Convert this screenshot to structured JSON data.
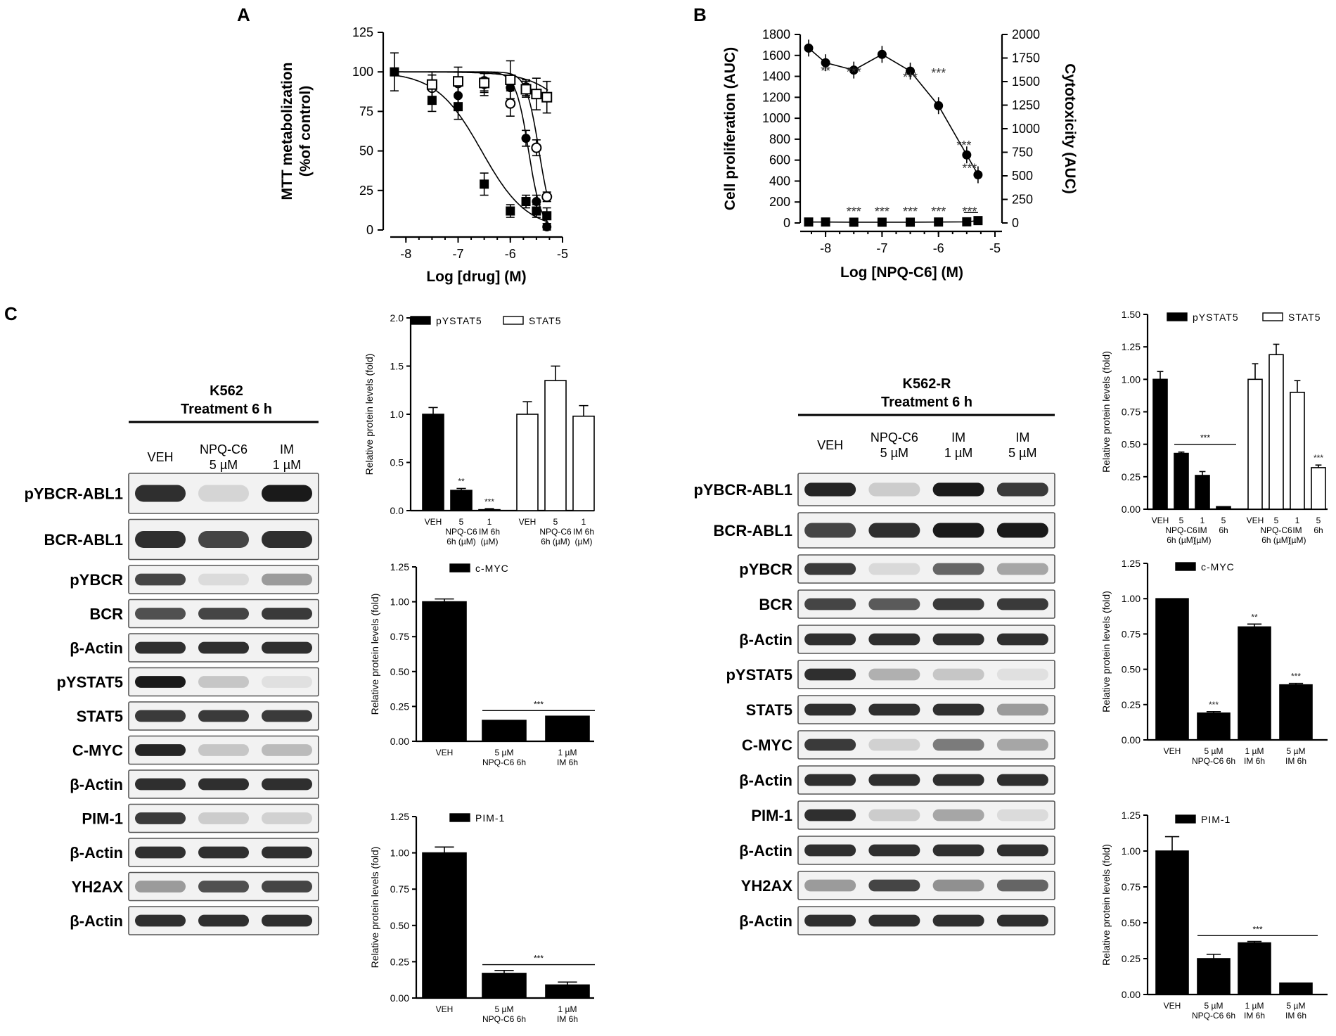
{
  "panels": {
    "A": "A",
    "B": "B",
    "C": "C"
  },
  "chart_data": [
    {
      "id": "A",
      "type": "scatter",
      "xlabel": "Log [drug] (M)",
      "ylabel": [
        "MTT metabolization",
        "(%of control)"
      ],
      "xlim": [
        -8.3,
        -5
      ],
      "ylim": [
        0,
        125
      ],
      "xticks": [
        -8,
        -7,
        -6,
        -5
      ],
      "yticks": [
        0,
        25,
        50,
        75,
        100,
        125
      ],
      "series": [
        {
          "marker": "filled-square",
          "x": [
            -8.22,
            -7.5,
            -7.0,
            -6.5,
            -6.0,
            -5.7,
            -5.5,
            -5.3
          ],
          "y": [
            100,
            82,
            78,
            29,
            12,
            18,
            12,
            9
          ],
          "err": [
            12,
            7,
            8,
            7,
            4,
            4,
            4,
            5
          ]
        },
        {
          "marker": "filled-circle",
          "x": [
            -7.5,
            -7.0,
            -6.5,
            -6.0,
            -5.7,
            -5.5,
            -5.3
          ],
          "y": [
            90,
            85,
            92,
            90,
            58,
            18,
            2
          ],
          "err": [
            8,
            7,
            7,
            7,
            5,
            4,
            2
          ]
        },
        {
          "marker": "open-circle",
          "x": [
            -7.5,
            -7.0,
            -6.5,
            -6.0,
            -5.7,
            -5.5,
            -5.3
          ],
          "y": [
            90,
            93,
            94,
            80,
            90,
            52,
            21
          ],
          "err": [
            8,
            7,
            6,
            8,
            5,
            5,
            3
          ]
        },
        {
          "marker": "open-square",
          "x": [
            -7.5,
            -7.0,
            -6.5,
            -6.0,
            -5.7,
            -5.5,
            -5.3
          ],
          "y": [
            92,
            94,
            93,
            95,
            89,
            86,
            84
          ],
          "err": [
            8,
            9,
            6,
            12,
            5,
            10,
            10
          ]
        }
      ]
    },
    {
      "id": "B",
      "type": "line",
      "xlabel": "Log [NPQ-C6] (M)",
      "ylabel_left": "Cell proliferation (AUC)",
      "ylabel_right": "Cytotoxicity (AUC)",
      "xlim": [
        -8.3,
        -5
      ],
      "ylim_left": [
        0,
        1800
      ],
      "ylim_right": [
        0,
        2000
      ],
      "xticks": [
        -8,
        -7,
        -6,
        -5
      ],
      "yticks_left": [
        0,
        200,
        400,
        600,
        800,
        1000,
        1200,
        1400,
        1600,
        1800
      ],
      "yticks_right": [
        0,
        250,
        500,
        750,
        1000,
        1250,
        1500,
        1750,
        2000
      ],
      "series": [
        {
          "marker": "filled-circle",
          "axis": "left",
          "x": [
            -8.3,
            -8.0,
            -7.5,
            -7.0,
            -6.5,
            -6.0,
            -5.5,
            -5.3
          ],
          "y": [
            1670,
            1530,
            1460,
            1610,
            1450,
            1120,
            650,
            460
          ]
        },
        {
          "marker": "filled-square",
          "axis": "right",
          "x": [
            -8.3,
            -8.0,
            -7.5,
            -7.0,
            -6.5,
            -6.0,
            -5.5,
            -5.3
          ],
          "y": [
            10,
            10,
            8,
            8,
            8,
            10,
            12,
            25
          ]
        }
      ],
      "annotations_top": [
        {
          "x": -8.0,
          "text": "**"
        },
        {
          "x": -7.5,
          "text": "***"
        },
        {
          "x": -6.5,
          "text": "***"
        },
        {
          "x": -6.0,
          "text": "***"
        },
        {
          "x": -5.55,
          "text": "***"
        },
        {
          "x": -5.45,
          "text": "***"
        }
      ],
      "annotations_bottom": [
        {
          "x": -7.5,
          "text": "***"
        },
        {
          "x": -7.0,
          "text": "***"
        },
        {
          "x": -6.5,
          "text": "***"
        },
        {
          "x": -6.0,
          "text": "***"
        },
        {
          "x": -5.45,
          "text": "***"
        }
      ]
    },
    {
      "id": "C-K562-STAT5",
      "type": "bar",
      "ylabel": "Relative protein levels (fold)",
      "ylim": [
        0,
        2.0
      ],
      "yticks": [
        "0.0",
        "0.5",
        "1.0",
        "1.5",
        "2.0"
      ],
      "legend": [
        {
          "label": "pYSTAT5",
          "fill": "#000"
        },
        {
          "label": "STAT5",
          "fill": "#fff"
        }
      ],
      "bars": [
        {
          "v": 1.0,
          "e": 0.07,
          "fill": "#000",
          "sig": ""
        },
        {
          "v": 0.21,
          "e": 0.02,
          "fill": "#000",
          "sig": "**"
        },
        {
          "v": 0.01,
          "e": 0.01,
          "fill": "#000",
          "sig": "***"
        },
        {
          "v": 1.0,
          "e": 0.13,
          "fill": "#fff",
          "sig": ""
        },
        {
          "v": 1.35,
          "e": 0.15,
          "fill": "#fff",
          "sig": ""
        },
        {
          "v": 0.98,
          "e": 0.11,
          "fill": "#fff",
          "sig": ""
        }
      ],
      "xlabels": [
        [
          "VEH"
        ],
        [
          "5",
          "NPQ-C6",
          "6h (µM)"
        ],
        [
          "1",
          "IM 6h",
          "(µM)"
        ],
        [
          "VEH"
        ],
        [
          "5",
          "NPQ-C6",
          "6h (µM)"
        ],
        [
          "1",
          "IM 6h",
          "(µM)"
        ]
      ]
    },
    {
      "id": "C-K562-CMYC",
      "type": "bar",
      "ylabel": "Relative protein levels (fold)",
      "ylim": [
        0,
        1.25
      ],
      "yticks": [
        "0.00",
        "0.25",
        "0.50",
        "0.75",
        "1.00",
        "1.25"
      ],
      "legend": [
        {
          "label": "c-MYC",
          "fill": "#000"
        }
      ],
      "bars": [
        {
          "v": 1.0,
          "e": 0.02,
          "fill": "#000",
          "sig": ""
        },
        {
          "v": 0.15,
          "e": 0.0,
          "fill": "#000",
          "sig": ""
        },
        {
          "v": 0.18,
          "e": 0.0,
          "fill": "#000",
          "sig": ""
        }
      ],
      "bracket": {
        "from": 1,
        "to": 2,
        "y": 0.22,
        "text": "***"
      },
      "xlabels": [
        [
          "VEH"
        ],
        [
          "5 µM",
          "NPQ-C6 6h"
        ],
        [
          "1 µM",
          "IM 6h"
        ]
      ]
    },
    {
      "id": "C-K562-PIM1",
      "type": "bar",
      "ylabel": "Relative protein levels (fold)",
      "ylim": [
        0,
        1.25
      ],
      "yticks": [
        "0.00",
        "0.25",
        "0.50",
        "0.75",
        "1.00",
        "1.25"
      ],
      "legend": [
        {
          "label": "PIM-1",
          "fill": "#000"
        }
      ],
      "bars": [
        {
          "v": 1.0,
          "e": 0.04,
          "fill": "#000",
          "sig": ""
        },
        {
          "v": 0.17,
          "e": 0.02,
          "fill": "#000",
          "sig": ""
        },
        {
          "v": 0.09,
          "e": 0.02,
          "fill": "#000",
          "sig": ""
        }
      ],
      "bracket": {
        "from": 1,
        "to": 2,
        "y": 0.23,
        "text": "***"
      },
      "xlabels": [
        [
          "VEH"
        ],
        [
          "5 µM",
          "NPQ-C6 6h"
        ],
        [
          "1 µM",
          "IM 6h"
        ]
      ]
    },
    {
      "id": "C-K562R-STAT5",
      "type": "bar",
      "ylabel": "Relative protein levels (fold)",
      "ylim": [
        0,
        1.5
      ],
      "yticks": [
        "0.00",
        "0.25",
        "0.50",
        "0.75",
        "1.00",
        "1.25",
        "1.50"
      ],
      "legend": [
        {
          "label": "pYSTAT5",
          "fill": "#000"
        },
        {
          "label": "STAT5",
          "fill": "#fff"
        }
      ],
      "bars": [
        {
          "v": 1.0,
          "e": 0.06,
          "fill": "#000",
          "sig": ""
        },
        {
          "v": 0.43,
          "e": 0.01,
          "fill": "#000",
          "sig": ""
        },
        {
          "v": 0.26,
          "e": 0.03,
          "fill": "#000",
          "sig": ""
        },
        {
          "v": 0.02,
          "e": 0.0,
          "fill": "#000",
          "sig": ""
        },
        {
          "v": 1.0,
          "e": 0.12,
          "fill": "#fff",
          "sig": ""
        },
        {
          "v": 1.19,
          "e": 0.08,
          "fill": "#fff",
          "sig": ""
        },
        {
          "v": 0.9,
          "e": 0.09,
          "fill": "#fff",
          "sig": ""
        },
        {
          "v": 0.32,
          "e": 0.02,
          "fill": "#fff",
          "sig": "***"
        }
      ],
      "bracket": {
        "from": 1,
        "to": 3,
        "y": 0.5,
        "text": "***"
      },
      "xlabels": [
        [
          "VEH"
        ],
        [
          "5",
          "NPQ-C6",
          "6h (µM)"
        ],
        [
          "1",
          "IM",
          "(µM)"
        ],
        [
          "5",
          "6h"
        ],
        [
          "VEH"
        ],
        [
          "5",
          "NPQ-C6",
          "6h (µM)"
        ],
        [
          "1",
          "IM",
          "(µM)"
        ],
        [
          "5",
          "6h"
        ]
      ]
    },
    {
      "id": "C-K562R-CMYC",
      "type": "bar",
      "ylabel": "Relative protein levels (fold)",
      "ylim": [
        0,
        1.25
      ],
      "yticks": [
        "0.00",
        "0.25",
        "0.50",
        "0.75",
        "1.00",
        "1.25"
      ],
      "legend": [
        {
          "label": "c-MYC",
          "fill": "#000"
        }
      ],
      "bars": [
        {
          "v": 1.0,
          "e": 0.0,
          "fill": "#000",
          "sig": ""
        },
        {
          "v": 0.19,
          "e": 0.01,
          "fill": "#000",
          "sig": "***"
        },
        {
          "v": 0.8,
          "e": 0.02,
          "fill": "#000",
          "sig": "**"
        },
        {
          "v": 0.39,
          "e": 0.01,
          "fill": "#000",
          "sig": "***"
        }
      ],
      "xlabels": [
        [
          "VEH"
        ],
        [
          "5 µM",
          "NPQ-C6 6h"
        ],
        [
          "1 µM",
          "IM 6h"
        ],
        [
          "5 µM",
          "IM 6h"
        ]
      ]
    },
    {
      "id": "C-K562R-PIM1",
      "type": "bar",
      "ylabel": "Relative protein levels (fold)",
      "ylim": [
        0,
        1.25
      ],
      "yticks": [
        "0.00",
        "0.25",
        "0.50",
        "0.75",
        "1.00",
        "1.25"
      ],
      "legend": [
        {
          "label": "PIM-1",
          "fill": "#000"
        }
      ],
      "bars": [
        {
          "v": 1.0,
          "e": 0.1,
          "fill": "#000",
          "sig": ""
        },
        {
          "v": 0.25,
          "e": 0.03,
          "fill": "#000",
          "sig": ""
        },
        {
          "v": 0.36,
          "e": 0.01,
          "fill": "#000",
          "sig": ""
        },
        {
          "v": 0.08,
          "e": 0.0,
          "fill": "#000",
          "sig": ""
        }
      ],
      "bracket": {
        "from": 1,
        "to": 3,
        "y": 0.41,
        "text": "***"
      },
      "xlabels": [
        [
          "VEH"
        ],
        [
          "5 µM",
          "NPQ-C6 6h"
        ],
        [
          "1 µM",
          "IM 6h"
        ],
        [
          "5 µM",
          "IM 6h"
        ]
      ]
    }
  ],
  "blots": [
    {
      "id": "K562",
      "header": [
        "K562",
        "Treatment 6 h"
      ],
      "lanes": [
        [
          "VEH"
        ],
        [
          "NPQ-C6",
          "5 µM"
        ],
        [
          "IM",
          "1 µM"
        ]
      ],
      "rows": [
        {
          "label": "pYBCR-ABL1",
          "bands": [
            0.85,
            0.08,
            0.95
          ]
        },
        {
          "label": "BCR-ABL1",
          "bands": [
            0.85,
            0.75,
            0.85
          ]
        },
        {
          "label": "pYBCR",
          "bands": [
            0.75,
            0.05,
            0.35
          ]
        },
        {
          "label": "BCR",
          "bands": [
            0.7,
            0.75,
            0.8
          ]
        },
        {
          "label": "β-Actin",
          "bands": [
            0.85,
            0.85,
            0.85
          ]
        },
        {
          "label": "pYSTAT5",
          "bands": [
            0.95,
            0.15,
            0.03
          ]
        },
        {
          "label": "STAT5",
          "bands": [
            0.8,
            0.8,
            0.8
          ]
        },
        {
          "label": "C-MYC",
          "bands": [
            0.9,
            0.15,
            0.2
          ]
        },
        {
          "label": "β-Actin",
          "bands": [
            0.85,
            0.85,
            0.85
          ]
        },
        {
          "label": "PIM-1",
          "bands": [
            0.8,
            0.12,
            0.1
          ]
        },
        {
          "label": "β-Actin",
          "bands": [
            0.85,
            0.85,
            0.85
          ]
        },
        {
          "label": "YH2AX",
          "bands": [
            0.35,
            0.7,
            0.75
          ]
        },
        {
          "label": "β-Actin",
          "bands": [
            0.85,
            0.85,
            0.85
          ]
        }
      ]
    },
    {
      "id": "K562-R",
      "header": [
        "K562-R",
        "Treatment 6 h"
      ],
      "lanes": [
        [
          "VEH"
        ],
        [
          "NPQ-C6",
          "5 µM"
        ],
        [
          "IM",
          "1 µM"
        ],
        [
          "IM",
          "5 µM"
        ]
      ],
      "rows": [
        {
          "label": "pYBCR-ABL1",
          "bands": [
            0.9,
            0.12,
            0.95,
            0.8
          ]
        },
        {
          "label": "BCR-ABL1",
          "bands": [
            0.75,
            0.85,
            0.95,
            0.95
          ]
        },
        {
          "label": "pYBCR",
          "bands": [
            0.8,
            0.06,
            0.6,
            0.3
          ]
        },
        {
          "label": "BCR",
          "bands": [
            0.75,
            0.65,
            0.8,
            0.8
          ]
        },
        {
          "label": "β-Actin",
          "bands": [
            0.85,
            0.85,
            0.85,
            0.85
          ]
        },
        {
          "label": "pYSTAT5",
          "bands": [
            0.85,
            0.25,
            0.15,
            0.03
          ]
        },
        {
          "label": "STAT5",
          "bands": [
            0.85,
            0.85,
            0.85,
            0.35
          ]
        },
        {
          "label": "C-MYC",
          "bands": [
            0.8,
            0.1,
            0.5,
            0.3
          ]
        },
        {
          "label": "β-Actin",
          "bands": [
            0.85,
            0.85,
            0.85,
            0.85
          ]
        },
        {
          "label": "PIM-1",
          "bands": [
            0.85,
            0.12,
            0.3,
            0.05
          ]
        },
        {
          "label": "β-Actin",
          "bands": [
            0.85,
            0.85,
            0.85,
            0.85
          ]
        },
        {
          "label": "YH2AX",
          "bands": [
            0.35,
            0.75,
            0.4,
            0.6
          ]
        },
        {
          "label": "β-Actin",
          "bands": [
            0.85,
            0.85,
            0.85,
            0.85
          ]
        }
      ]
    }
  ]
}
